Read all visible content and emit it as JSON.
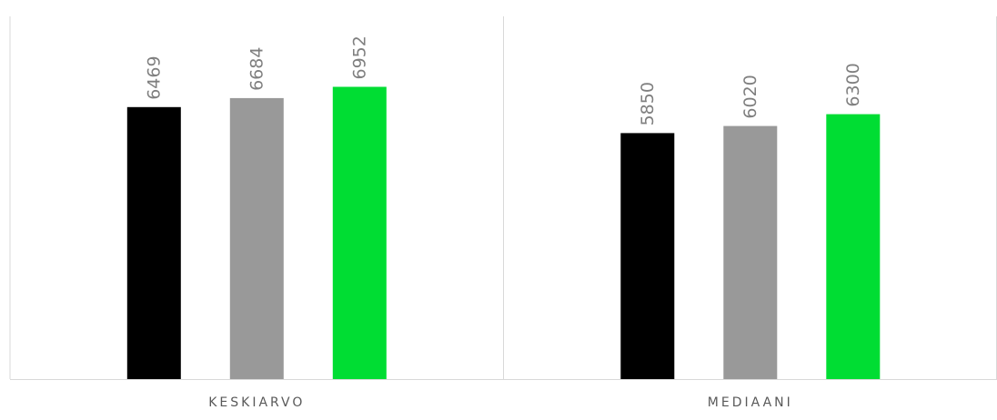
{
  "chart_data": {
    "type": "bar",
    "title": "",
    "xlabel": "",
    "ylabel": "",
    "categories": [
      "KESKIARVO",
      "MEDIAANI"
    ],
    "series": [
      {
        "values": [
          6469,
          5850
        ],
        "color": "#000000"
      },
      {
        "values": [
          6684,
          6020
        ],
        "color": "#999999"
      },
      {
        "values": [
          6952,
          6300
        ],
        "color": "#00dd33"
      }
    ],
    "ylim": [
      0,
      7000
    ],
    "grid": false,
    "legend": "none",
    "data_labels": true,
    "data_label_rotation": "vertical",
    "category_separators": true
  }
}
